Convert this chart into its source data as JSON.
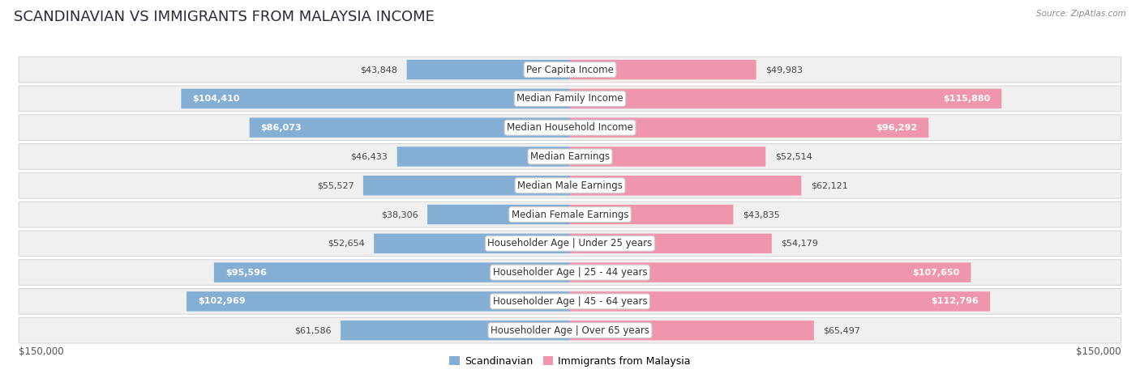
{
  "title": "SCANDINAVIAN VS IMMIGRANTS FROM MALAYSIA INCOME",
  "source": "Source: ZipAtlas.com",
  "categories": [
    "Per Capita Income",
    "Median Family Income",
    "Median Household Income",
    "Median Earnings",
    "Median Male Earnings",
    "Median Female Earnings",
    "Householder Age | Under 25 years",
    "Householder Age | 25 - 44 years",
    "Householder Age | 45 - 64 years",
    "Householder Age | Over 65 years"
  ],
  "scandinavian": [
    43848,
    104410,
    86073,
    46433,
    55527,
    38306,
    52654,
    95596,
    102969,
    61586
  ],
  "malaysia": [
    49983,
    115880,
    96292,
    52514,
    62121,
    43835,
    54179,
    107650,
    112796,
    65497
  ],
  "scandinavian_color": "#85aed4",
  "malaysia_color": "#f095ae",
  "scandinavian_label": "Scandinavian",
  "malaysia_label": "Immigrants from Malaysia",
  "xlim": 150000,
  "title_fontsize": 13,
  "label_fontsize": 8.5,
  "value_fontsize": 8,
  "inside_threshold": 70000
}
